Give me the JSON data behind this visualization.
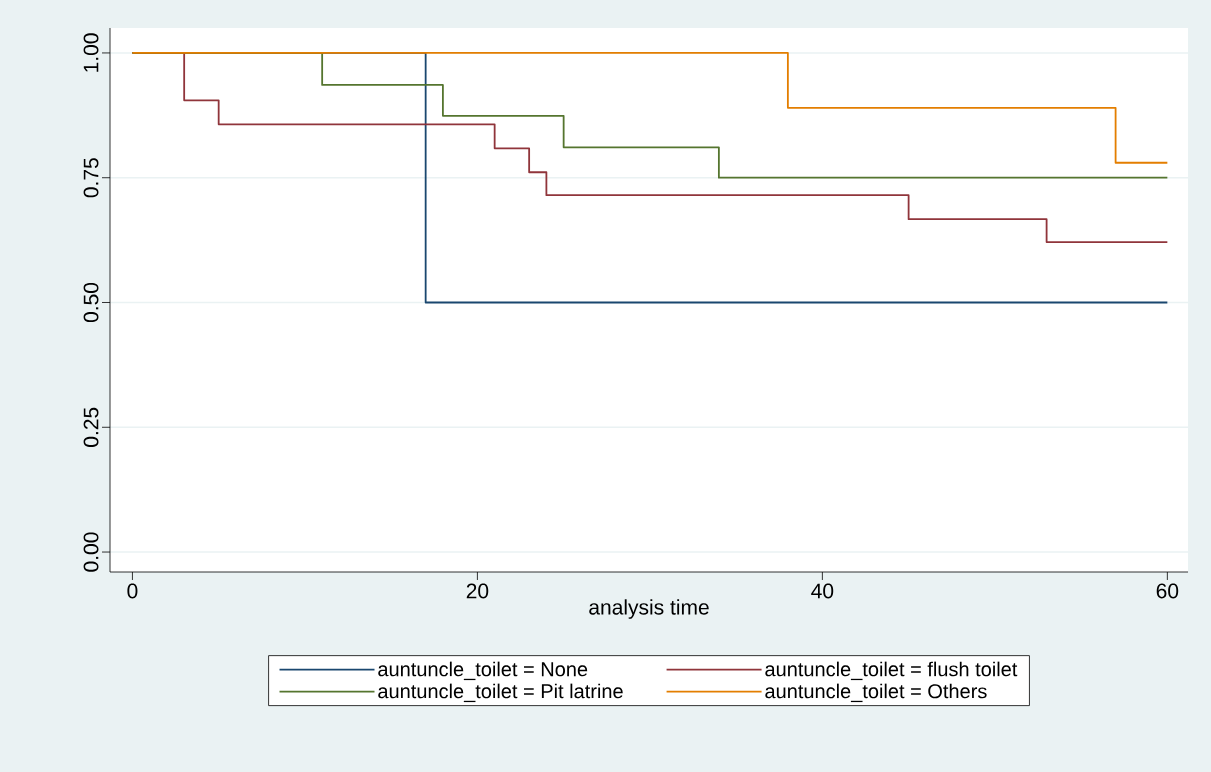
{
  "chart_data": {
    "type": "step",
    "xlabel": "analysis time",
    "xlim": [
      -1.3,
      61.2
    ],
    "ylim": [
      -0.04,
      1.05
    ],
    "xticks": [
      0,
      20,
      40,
      60
    ],
    "yticks": [
      {
        "value": 0,
        "label": "0.00"
      },
      {
        "value": 0.25,
        "label": "0.25"
      },
      {
        "value": 0.5,
        "label": "0.50"
      },
      {
        "value": 0.75,
        "label": "0.75"
      },
      {
        "value": 1,
        "label": "1.00"
      }
    ],
    "grid": "y",
    "legend": "bottom",
    "series": [
      {
        "name": "auntuncle_toilet = None",
        "color": "#1a476f",
        "x": [
          0,
          17,
          60
        ],
        "values": [
          1,
          0.5,
          0.5
        ]
      },
      {
        "name": "auntuncle_toilet = flush toilet",
        "color": "#90353b",
        "x": [
          0,
          3,
          5,
          21,
          23,
          24,
          45,
          53,
          60
        ],
        "values": [
          1,
          0.905,
          0.857,
          0.809,
          0.761,
          0.715,
          0.667,
          0.621,
          0.621
        ]
      },
      {
        "name": "auntuncle_toilet = Pit latrine",
        "color": "#55752f",
        "x": [
          0,
          11,
          18,
          25,
          34,
          60
        ],
        "values": [
          1,
          0.936,
          0.874,
          0.811,
          0.75,
          0.75
        ]
      },
      {
        "name": "auntuncle_toilet = Others",
        "color": "#e37e00",
        "x": [
          0,
          38,
          57,
          60
        ],
        "values": [
          1,
          0.89,
          0.78,
          0.78
        ]
      }
    ]
  }
}
